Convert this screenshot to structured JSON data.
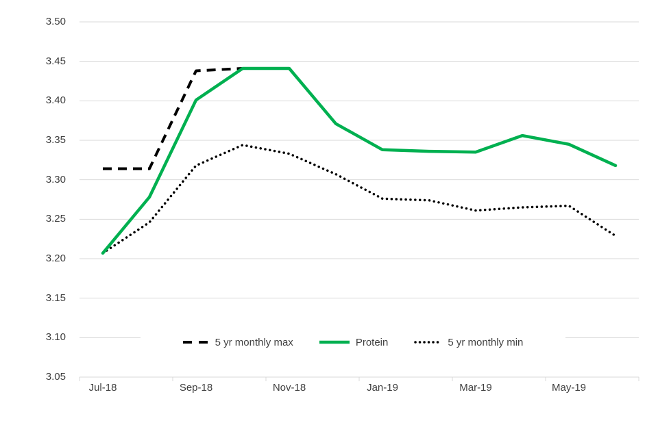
{
  "chart_data": {
    "type": "line",
    "x": [
      "Jul-18",
      "Aug-18",
      "Sep-18",
      "Oct-18",
      "Nov-18",
      "Dec-18",
      "Jan-19",
      "Feb-19",
      "Mar-19",
      "Apr-19",
      "May-19",
      "Jun-19"
    ],
    "x_axis_labels_shown": [
      "Jul-18",
      "Sep-18",
      "Nov-18",
      "Jan-19",
      "Mar-19",
      "May-19"
    ],
    "y_tick_labels": [
      "3.50",
      "3.45",
      "3.40",
      "3.35",
      "3.30",
      "3.25",
      "3.20",
      "3.15",
      "3.10",
      "3.05"
    ],
    "ylim": [
      3.05,
      3.5
    ],
    "y_tick_step": 0.05,
    "grid": "horizontal",
    "legend_position": "bottom-center-inside",
    "title": "",
    "xlabel": "",
    "ylabel": "",
    "series": [
      {
        "name": "5 yr monthly max",
        "style": "dashed",
        "color": "#000000",
        "values": [
          3.314,
          3.314,
          3.438,
          3.441,
          null,
          null,
          null,
          null,
          null,
          null,
          null,
          null
        ]
      },
      {
        "name": "Protein",
        "style": "solid",
        "color": "#00B050",
        "values": [
          3.207,
          3.278,
          3.401,
          3.441,
          3.441,
          3.371,
          3.338,
          3.336,
          3.335,
          3.356,
          3.345,
          3.318
        ]
      },
      {
        "name": "5 yr monthly min",
        "style": "dotted",
        "color": "#000000",
        "values": [
          3.207,
          3.246,
          3.318,
          3.344,
          3.333,
          3.307,
          3.276,
          3.274,
          3.261,
          3.265,
          3.267,
          3.229
        ]
      }
    ],
    "colors": {
      "gridline": "#D9D9D9",
      "axis_text": "#404040",
      "background": "#FFFFFF"
    }
  }
}
